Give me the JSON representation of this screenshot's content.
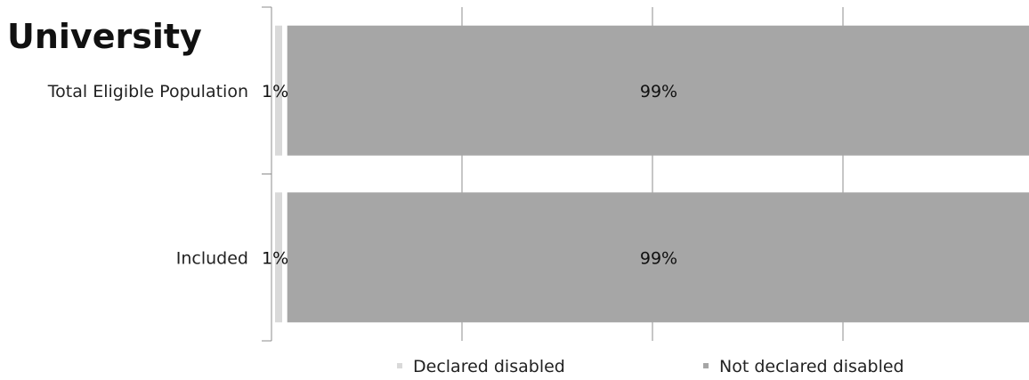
{
  "chart_data": {
    "type": "bar",
    "orientation": "horizontal",
    "stacked": true,
    "percent_stacked": true,
    "title": "University",
    "categories": [
      "Total Eligible Population",
      "Included"
    ],
    "series": [
      {
        "name": "Declared disabled",
        "values": [
          1,
          1
        ],
        "labels": [
          "1%",
          "1%"
        ],
        "color": "#d9d9d9"
      },
      {
        "name": "Not declared disabled",
        "values": [
          99,
          99
        ],
        "labels": [
          "99%",
          "99%"
        ],
        "color": "#a6a6a6"
      }
    ],
    "xlim": [
      0,
      100
    ],
    "grid": true,
    "legend_position": "bottom"
  }
}
